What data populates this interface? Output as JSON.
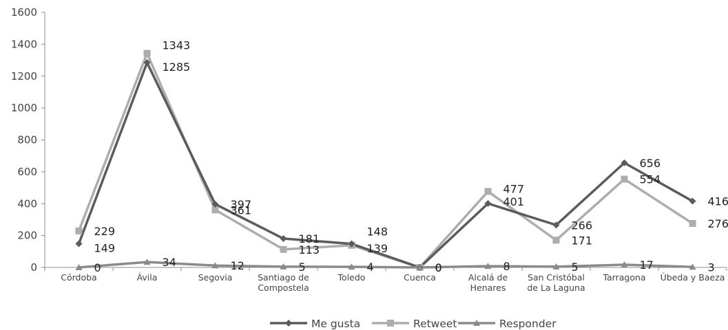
{
  "chart_data": {
    "type": "line",
    "categories": [
      [
        "Córdoba"
      ],
      [
        "Ávila"
      ],
      [
        "Segovia"
      ],
      [
        "Santiago de",
        "Compostela"
      ],
      [
        "Toledo"
      ],
      [
        "Cuenca"
      ],
      [
        "Alcalá de",
        "Henares"
      ],
      [
        "San Cristóbal",
        "de La Laguna"
      ],
      [
        "Tarragona"
      ],
      [
        "Úbeda y Baeza"
      ]
    ],
    "series": [
      {
        "name": "Me gusta",
        "color": "#5b5b5b",
        "marker": "diamond",
        "values": [
          149,
          1285,
          397,
          181,
          148,
          0,
          401,
          266,
          656,
          416
        ],
        "labels": [
          "149",
          "1285",
          "397",
          "181",
          "148",
          "0",
          "401",
          "266",
          "656",
          "416"
        ]
      },
      {
        "name": "Retweet",
        "color": "#adadad",
        "marker": "square",
        "values": [
          229,
          1343,
          361,
          113,
          139,
          0,
          477,
          171,
          554,
          276
        ],
        "labels": [
          "229",
          "1343",
          "361",
          "113",
          "139",
          "0",
          "477",
          "171",
          "554",
          "276"
        ]
      },
      {
        "name": "Responder",
        "color": "#8a8a8a",
        "marker": "triangle",
        "values": [
          0,
          34,
          12,
          5,
          4,
          0,
          8,
          5,
          17,
          3
        ],
        "labels": [
          "0",
          "34",
          "12",
          "5",
          "4",
          "0",
          "8",
          "5",
          "17",
          "3"
        ]
      }
    ],
    "ylim": [
      0,
      1600
    ],
    "yticks": [
      "0",
      "200",
      "400",
      "600",
      "800",
      "1000",
      "1200",
      "1400",
      "1600"
    ],
    "grid": false,
    "legend": "bottom-center"
  }
}
